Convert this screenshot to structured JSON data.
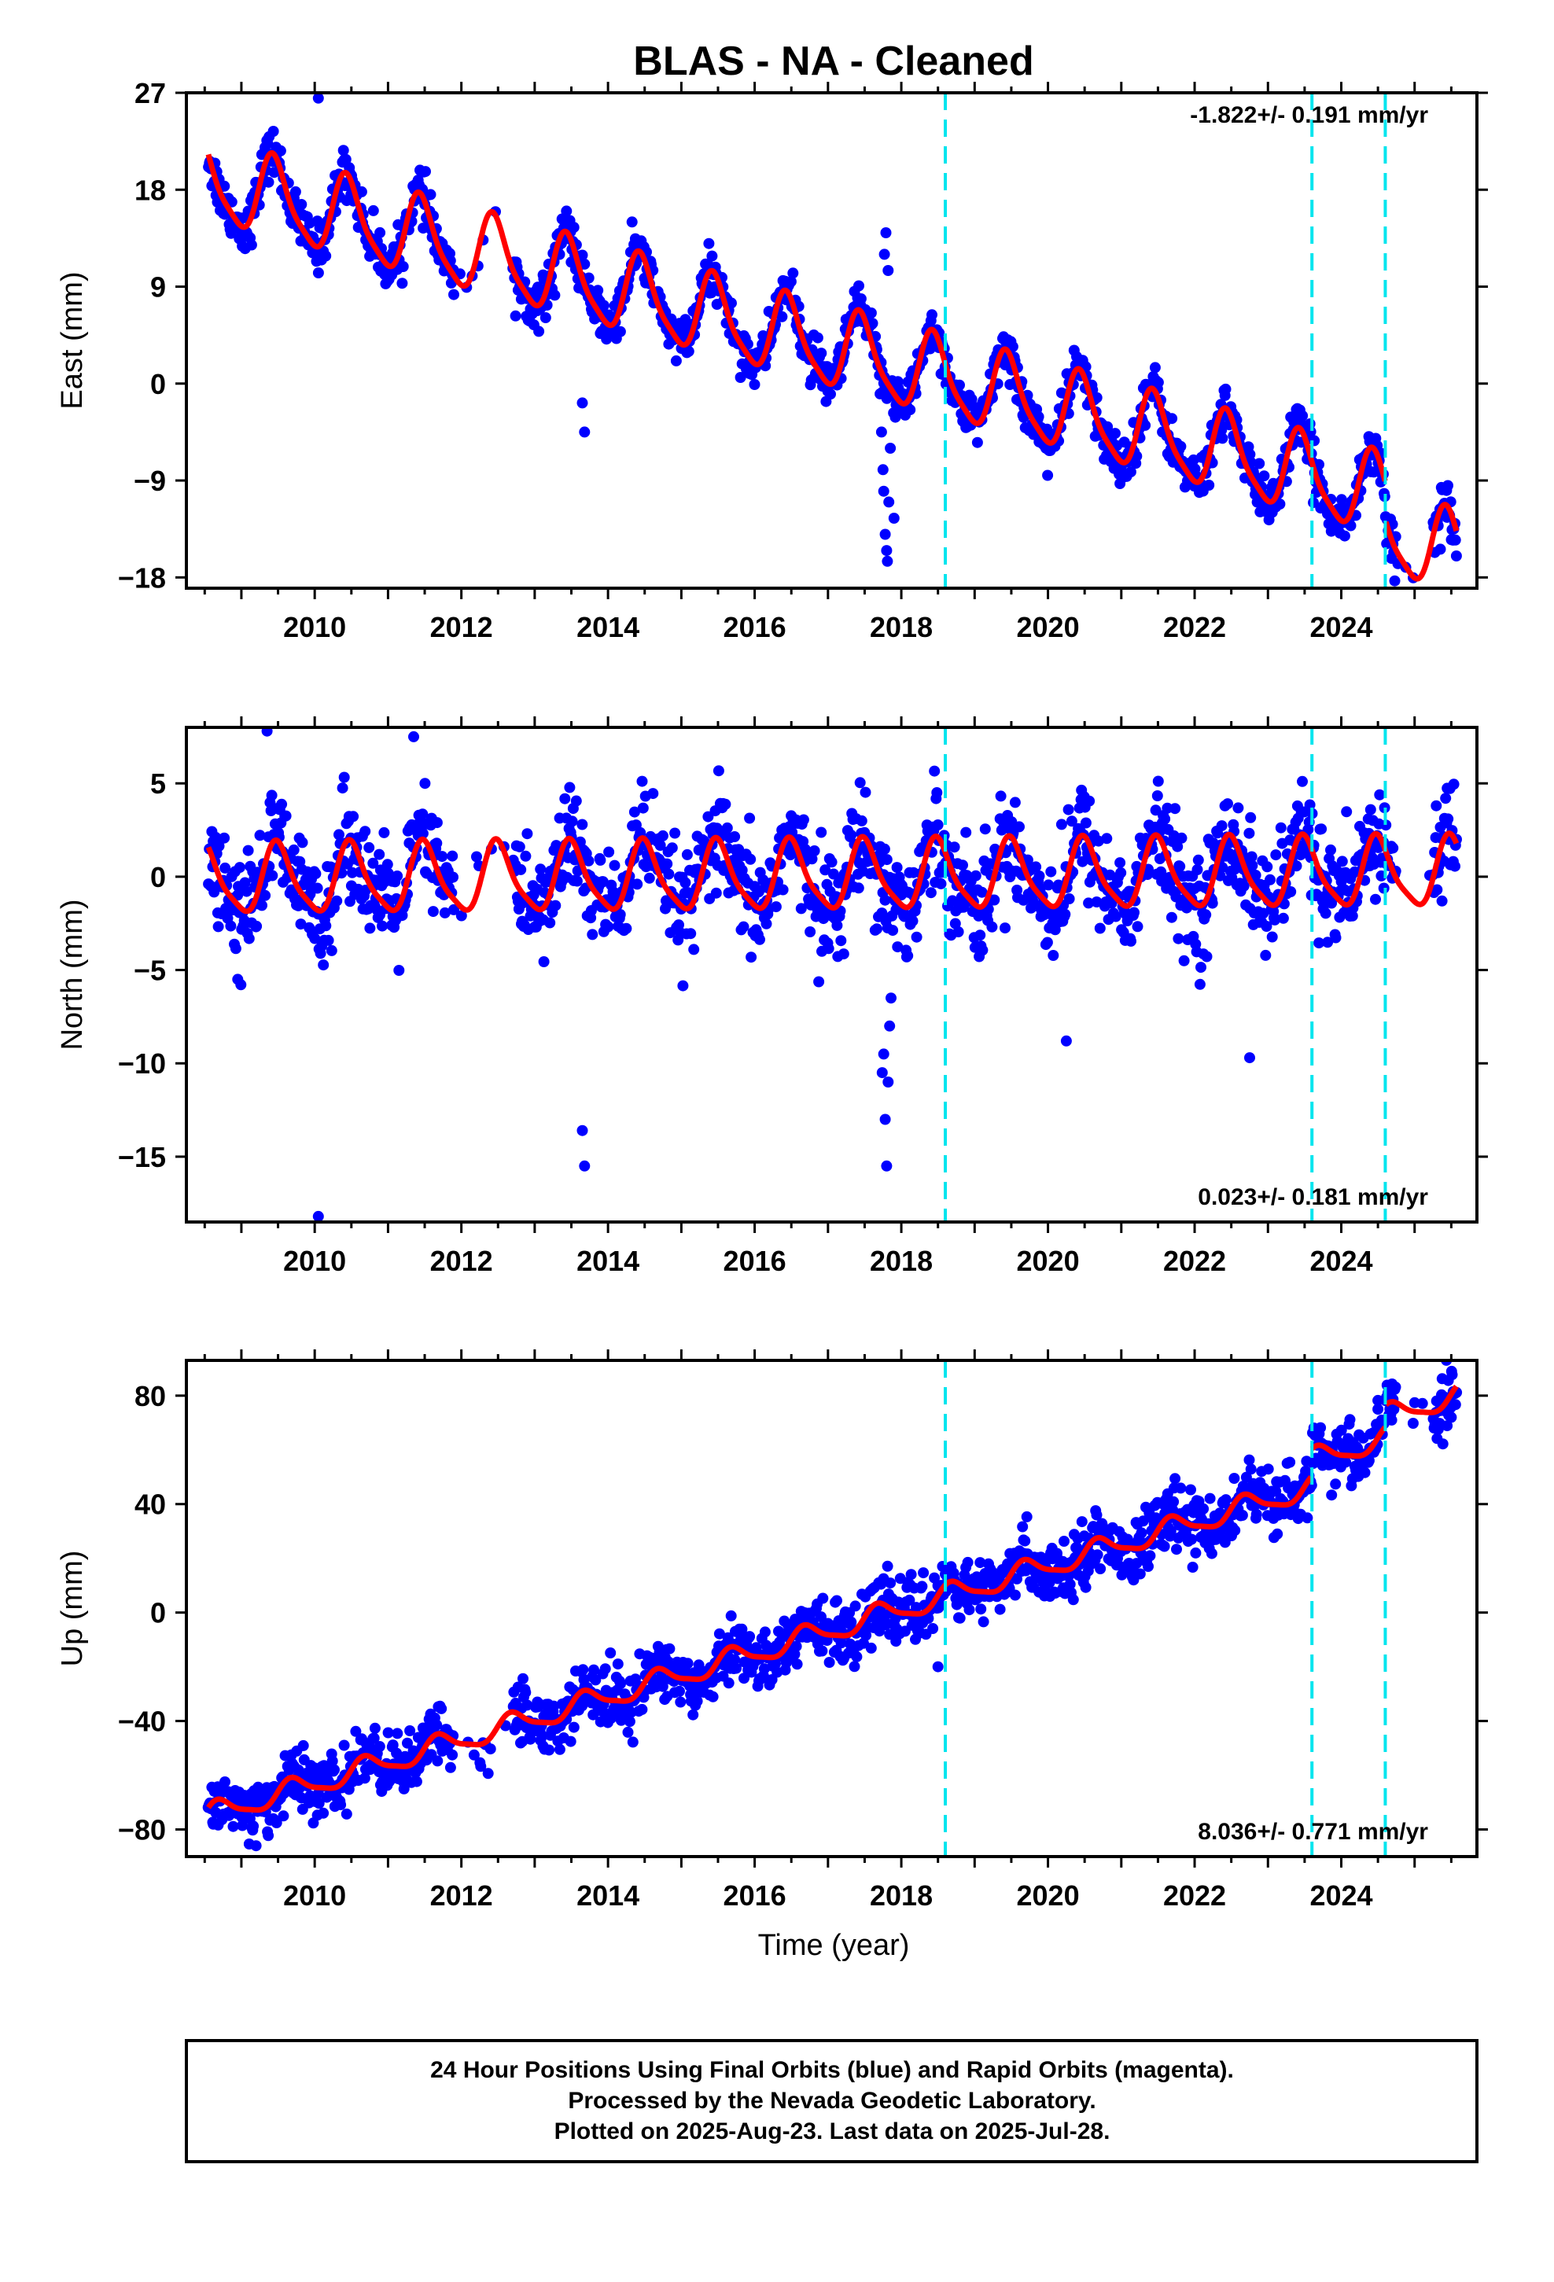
{
  "title": "BLAS  - NA - Cleaned",
  "colors": {
    "observations": "#0000ff",
    "model": "#ff0000",
    "events": "#00e5ee",
    "frame": "#000000"
  },
  "x_axis_label": "Time (year)",
  "footer": {
    "line1": "24 Hour Positions Using Final Orbits (blue) and Rapid Orbits (magenta).",
    "line2": "Processed by the Nevada Geodetic Laboratory.",
    "line3": "Plotted on 2025-Aug-23. Last data on 2025-Jul-28."
  },
  "chart_data": [
    {
      "type": "scatter",
      "name": "east",
      "ylabel": "East (mm)",
      "rate_label": "-1.822+/- 0.191 mm/yr",
      "rate_position": "top-right",
      "xlim": [
        2008.25,
        2025.85
      ],
      "ylim": [
        -19,
        27
      ],
      "yticks": [
        -18,
        -9,
        0,
        9,
        18,
        27
      ],
      "xticks": [
        2010,
        2012,
        2014,
        2016,
        2018,
        2020,
        2022,
        2024
      ],
      "event_lines": [
        2018.6,
        2023.6,
        2024.6
      ],
      "data_span": [
        2008.55,
        2025.57
      ],
      "model": {
        "intercept": 12.45,
        "rate": -1.822,
        "ref_year": 2012,
        "annual_amp": 3.6,
        "annual_peak_year_fraction": 0.45,
        "semiannual_amp": 0.8
      },
      "offsets": [
        {
          "year": 2024.6,
          "mm": -3.5
        }
      ],
      "noise_mm": 1.1,
      "outliers": [
        [
          2010.05,
          26.5
        ],
        [
          2013.65,
          -1.8
        ],
        [
          2013.68,
          -4.5
        ],
        [
          2017.8,
          -15.5
        ],
        [
          2017.78,
          -14.0
        ],
        [
          2017.83,
          -11.0
        ],
        [
          2017.75,
          -8.0
        ],
        [
          2017.85,
          -6.0
        ],
        [
          2017.73,
          -4.5
        ],
        [
          2017.9,
          -12.5
        ],
        [
          2017.76,
          -10.0
        ],
        [
          2017.81,
          -16.5
        ],
        [
          2017.79,
          14.0
        ],
        [
          2017.77,
          12.0
        ],
        [
          2017.82,
          10.5
        ]
      ]
    },
    {
      "type": "scatter",
      "name": "north",
      "ylabel": "North (mm)",
      "rate_label": "0.023+/- 0.181 mm/yr",
      "rate_position": "bottom-right",
      "xlim": [
        2008.25,
        2025.85
      ],
      "ylim": [
        -18.5,
        8
      ],
      "yticks": [
        -15,
        -10,
        -5,
        0,
        5
      ],
      "xticks": [
        2010,
        2012,
        2014,
        2016,
        2018,
        2020,
        2022,
        2024
      ],
      "event_lines": [
        2018.6,
        2023.6,
        2024.6
      ],
      "data_span": [
        2008.55,
        2025.57
      ],
      "model": {
        "intercept": 0.0,
        "rate": 0.023,
        "ref_year": 2017,
        "annual_amp": 1.8,
        "annual_peak_year_fraction": 0.5,
        "semiannual_amp": 0.4
      },
      "offsets": [],
      "noise_mm": 1.4,
      "outliers": [
        [
          2010.05,
          -18.2
        ],
        [
          2013.65,
          -13.6
        ],
        [
          2013.68,
          -15.5
        ],
        [
          2017.8,
          -15.5
        ],
        [
          2017.78,
          -13.0
        ],
        [
          2017.82,
          -11.0
        ],
        [
          2017.76,
          -9.5
        ],
        [
          2017.84,
          -8.0
        ],
        [
          2017.74,
          -10.5
        ],
        [
          2017.86,
          -6.5
        ],
        [
          2020.25,
          -8.8
        ],
        [
          2022.75,
          -9.7
        ],
        [
          2009.35,
          7.8
        ],
        [
          2011.35,
          7.5
        ],
        [
          2008.95,
          -5.5
        ]
      ]
    },
    {
      "type": "scatter",
      "name": "up",
      "ylabel": "Up (mm)",
      "rate_label": "8.036+/- 0.771 mm/yr",
      "rate_position": "bottom-right",
      "xlim": [
        2008.25,
        2025.85
      ],
      "ylim": [
        -90,
        93
      ],
      "yticks": [
        -80,
        -40,
        0,
        40,
        80
      ],
      "xticks": [
        2010,
        2012,
        2014,
        2016,
        2018,
        2020,
        2022,
        2024
      ],
      "event_lines": [
        2018.6,
        2023.6,
        2024.6
      ],
      "data_span": [
        2008.55,
        2025.57
      ],
      "model": {
        "intercept": -47.0,
        "rate": 8.036,
        "ref_year": 2012,
        "annual_amp": 4.0,
        "annual_peak_year_fraction": 0.7,
        "semiannual_amp": 1.0
      },
      "offsets": [
        {
          "year": 2023.6,
          "mm": 10.0
        },
        {
          "year": 2024.6,
          "mm": 8.0
        }
      ],
      "noise_mm": 5.5,
      "outliers": [
        [
          2009.2,
          -86
        ],
        [
          2018.5,
          -20
        ],
        [
          2024.5,
          75
        ],
        [
          2025.5,
          72
        ]
      ]
    }
  ]
}
